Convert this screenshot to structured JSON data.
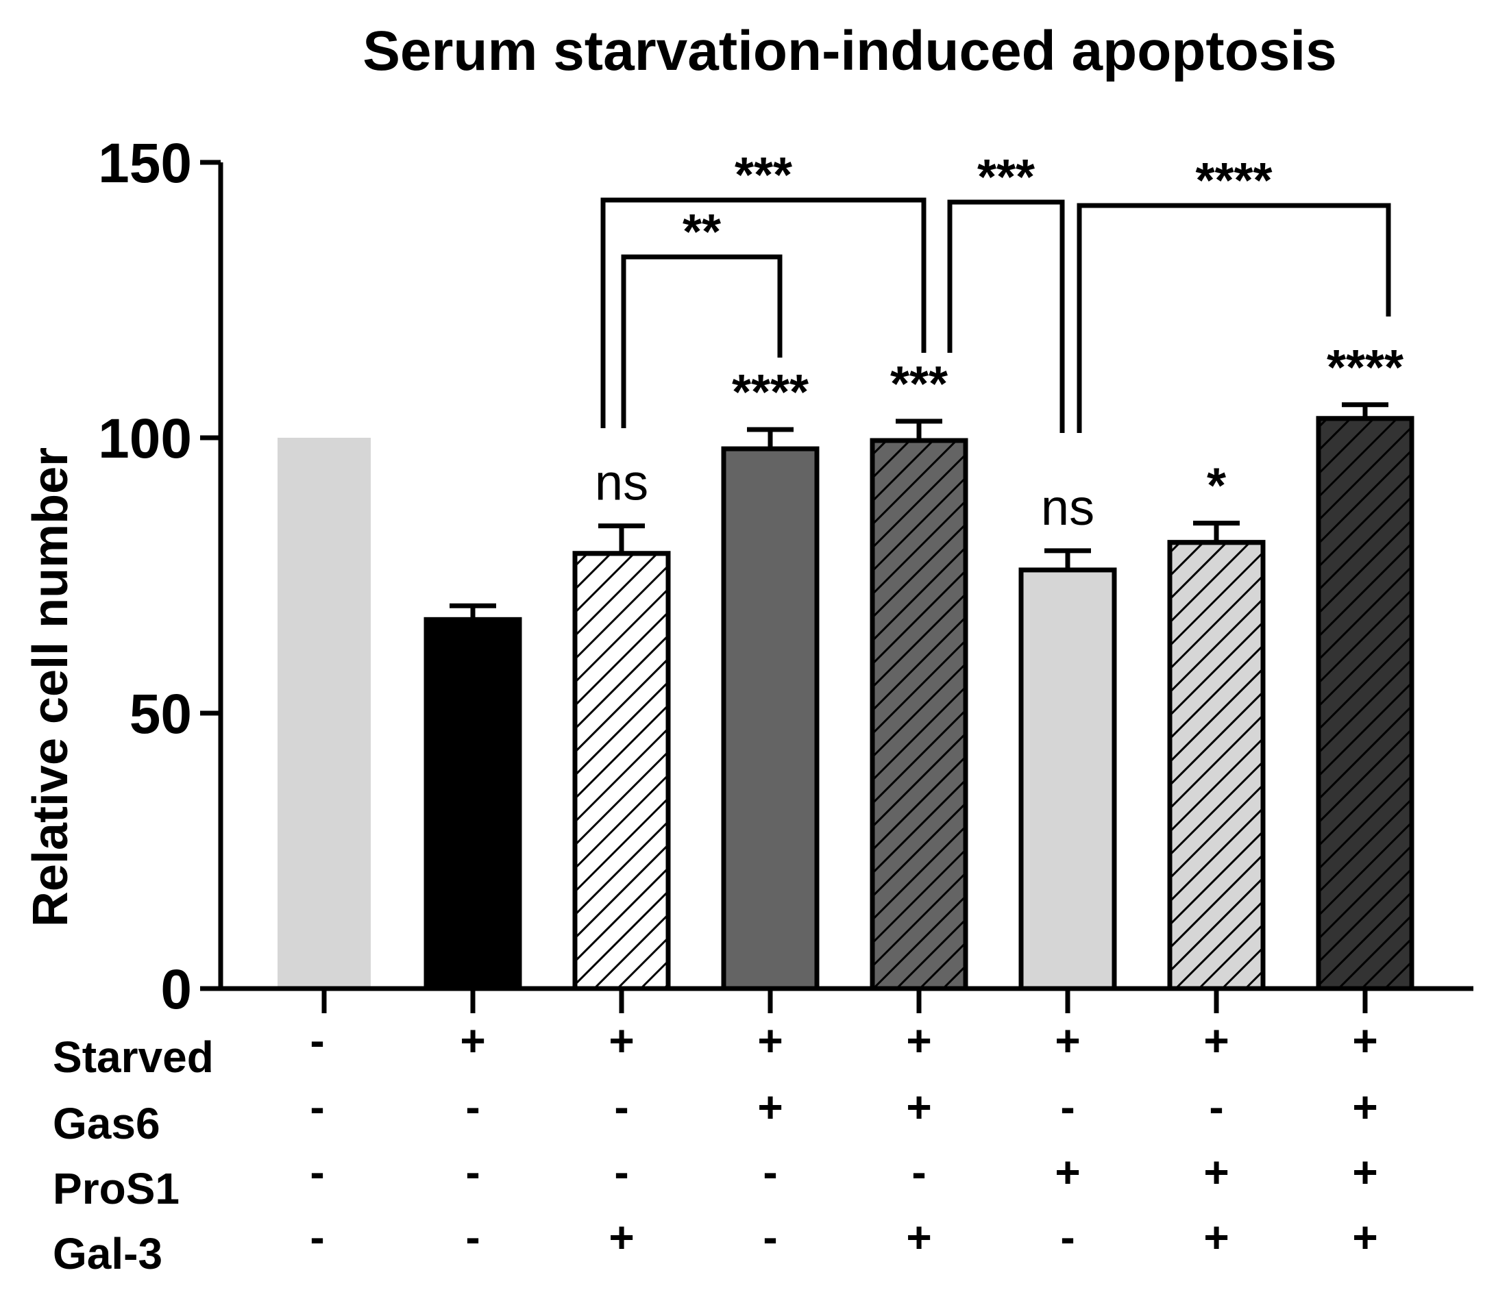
{
  "chart_data": {
    "type": "bar",
    "title": "Serum starvation-induced apoptosis",
    "ylabel": "Relative cell number",
    "xlabel": "",
    "ylim": [
      0,
      150
    ],
    "yticks": [
      0,
      50,
      100,
      150
    ],
    "ytick_labels": [
      "0",
      "50",
      "100",
      "150"
    ],
    "bars": [
      {
        "value": 100,
        "error": 0,
        "fill": "#d6d6d6",
        "pattern": "none",
        "outline": false
      },
      {
        "value": 67,
        "error": 2.5,
        "fill": "#000000",
        "pattern": "none",
        "outline": true
      },
      {
        "value": 79,
        "error": 5,
        "fill": "#ffffff",
        "pattern": "hatch",
        "outline": true
      },
      {
        "value": 98,
        "error": 3.5,
        "fill": "#646464",
        "pattern": "none",
        "outline": true
      },
      {
        "value": 99.5,
        "error": 3.5,
        "fill": "#646464",
        "pattern": "hatch",
        "outline": true
      },
      {
        "value": 76,
        "error": 3.5,
        "fill": "#d6d6d6",
        "pattern": "none",
        "outline": true
      },
      {
        "value": 81,
        "error": 3.5,
        "fill": "#d6d6d6",
        "pattern": "hatch",
        "outline": true
      },
      {
        "value": 103.5,
        "error": 2.5,
        "fill": "#333333",
        "pattern": "hatch",
        "outline": true
      }
    ],
    "annotations": [
      "",
      "",
      "ns",
      "****",
      "***",
      "ns",
      "*",
      "****"
    ],
    "comparisons": [
      {
        "from": 2,
        "to": 3,
        "label": "**",
        "level": 133
      },
      {
        "from": 2,
        "to": 4,
        "label": "***",
        "level": 143
      },
      {
        "from": 4,
        "to": 5,
        "label": "***",
        "level": 143
      },
      {
        "from": 5,
        "to": 7,
        "label": "****",
        "level": 143
      }
    ],
    "conditions": [
      {
        "name": "Starved",
        "signs": [
          "-",
          "+",
          "+",
          "+",
          "+",
          "+",
          "+",
          "+"
        ]
      },
      {
        "name": "Gas6",
        "signs": [
          "-",
          "-",
          "-",
          "+",
          "+",
          "-",
          "-",
          "+"
        ]
      },
      {
        "name": "ProS1",
        "signs": [
          "-",
          "-",
          "-",
          "-",
          "-",
          "+",
          "+",
          "+"
        ]
      },
      {
        "name": "Gal-3",
        "signs": [
          "-",
          "-",
          "+",
          "-",
          "+",
          "-",
          "+",
          "+"
        ]
      }
    ]
  }
}
